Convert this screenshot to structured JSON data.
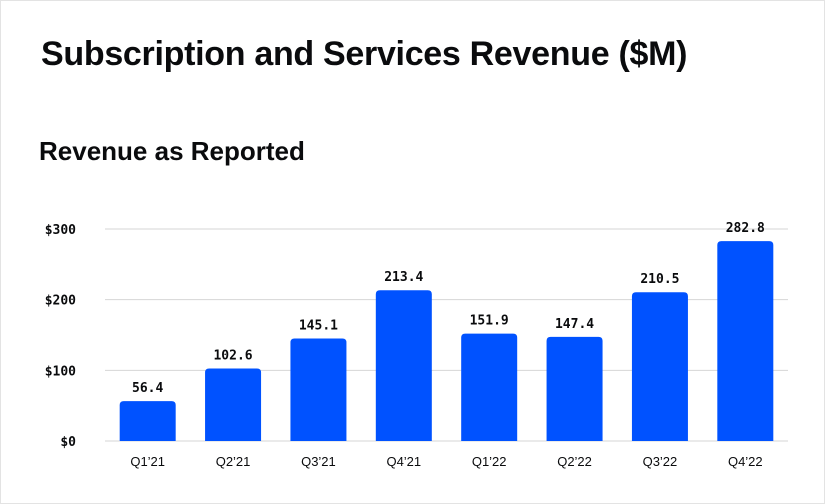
{
  "title": "Subscription and Services Revenue ($M)",
  "subtitle": "Revenue as Reported",
  "colors": {
    "bar": "#0052ff",
    "grid": "#d6d6d6",
    "text": "#0a0b0d"
  },
  "chart_data": {
    "type": "bar",
    "categories": [
      "Q1’21",
      "Q2’21",
      "Q3’21",
      "Q4’21",
      "Q1’22",
      "Q2’22",
      "Q3’22",
      "Q4’22"
    ],
    "values": [
      56.4,
      102.6,
      145.1,
      213.4,
      151.9,
      147.4,
      210.5,
      282.8
    ],
    "data_labels": [
      "56.4",
      "102.6",
      "145.1",
      "213.4",
      "151.9",
      "147.4",
      "210.5",
      "282.8"
    ],
    "y_ticks": [
      0,
      100,
      200,
      300
    ],
    "y_tick_labels": [
      "$0",
      "$100",
      "$200",
      "$300"
    ],
    "ylim": [
      0,
      300
    ],
    "grid": true,
    "legend": "none"
  }
}
